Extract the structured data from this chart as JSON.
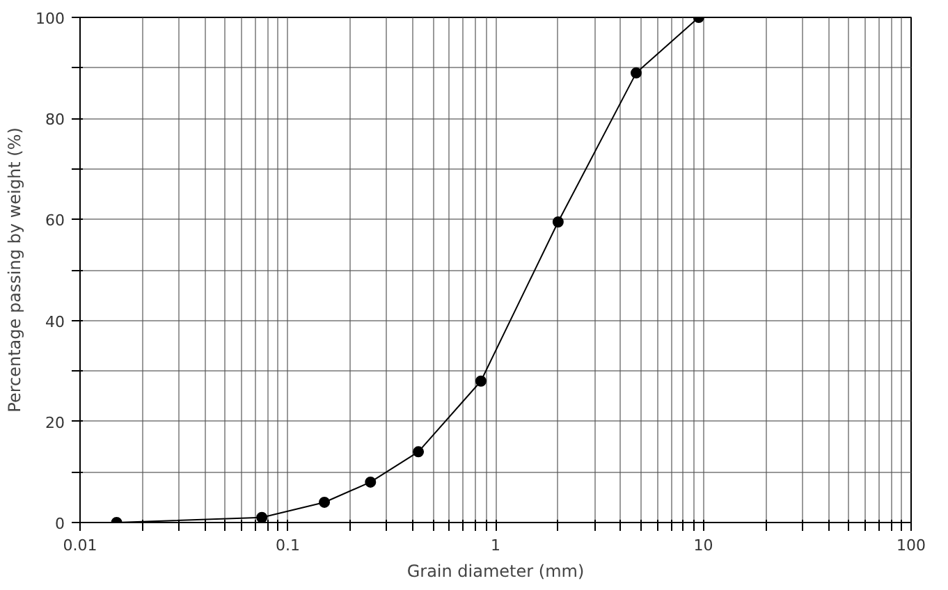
{
  "chart_data": {
    "type": "line",
    "xlabel": "Grain diameter (mm)",
    "ylabel": "Percentage passing by weight (%)",
    "x": [
      0.015,
      0.075,
      0.15,
      0.25,
      0.425,
      0.85,
      2,
      4.75,
      9.5
    ],
    "series": [
      {
        "color": "#000000",
        "values": [
          0,
          1,
          4,
          8,
          14,
          28,
          59.5,
          89,
          100
        ]
      }
    ],
    "log": "x",
    "marker": "circle",
    "line_style": "solid",
    "grid": true,
    "xlim": [
      0.01,
      100
    ],
    "ylim": [
      0,
      100
    ],
    "xticks": [
      0.01,
      {
        "value": 0.02,
        "label": null
      },
      {
        "value": 0.03,
        "label": null
      },
      {
        "value": 0.04,
        "label": null
      },
      {
        "value": 0.05,
        "label": null
      },
      {
        "value": 0.06,
        "label": null
      },
      {
        "value": 0.07,
        "label": null
      },
      {
        "value": 0.08,
        "label": null
      },
      {
        "value": 0.09,
        "label": null
      },
      0.1,
      {
        "value": 0.2,
        "label": null
      },
      {
        "value": 0.3,
        "label": null
      },
      {
        "value": 0.4,
        "label": null
      },
      {
        "value": 0.5,
        "label": null
      },
      {
        "value": 0.6,
        "label": null
      },
      {
        "value": 0.7,
        "label": null
      },
      {
        "value": 0.8,
        "label": null
      },
      {
        "value": 0.9,
        "label": null
      },
      1,
      {
        "value": 2,
        "label": null
      },
      {
        "value": 3,
        "label": null
      },
      {
        "value": 4,
        "label": null
      },
      {
        "value": 5,
        "label": null
      },
      {
        "value": 6,
        "label": null
      },
      {
        "value": 7,
        "label": null
      },
      {
        "value": 8,
        "label": null
      },
      {
        "value": 9,
        "label": null
      },
      10,
      {
        "value": 20,
        "label": null
      },
      {
        "value": 30,
        "label": null
      },
      {
        "value": 40,
        "label": null
      },
      {
        "value": 50,
        "label": null
      },
      {
        "value": 60,
        "label": null
      },
      {
        "value": 70,
        "label": null
      },
      {
        "value": 80,
        "label": null
      },
      {
        "value": 90,
        "label": null
      },
      100
    ],
    "yticks": [
      0,
      {
        "value": 10,
        "label": null
      },
      20,
      {
        "value": 30,
        "label": null
      },
      40,
      {
        "value": 50,
        "label": null
      },
      60,
      {
        "value": 70,
        "label": null
      },
      80,
      {
        "value": 90,
        "label": null
      },
      100
    ]
  }
}
